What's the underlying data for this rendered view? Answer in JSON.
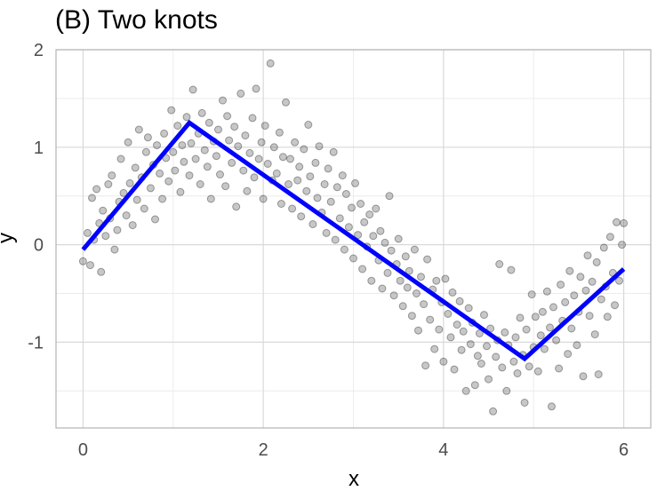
{
  "chart_data": {
    "type": "scatter",
    "title": "(B) Two knots",
    "xlabel": "x",
    "ylabel": "y",
    "xlim": [
      -0.3,
      6.3
    ],
    "ylim": [
      -1.88,
      2.0
    ],
    "x_ticks": [
      0,
      2,
      4,
      6
    ],
    "y_ticks": [
      -1,
      0,
      1,
      2
    ],
    "x_tick_labels": [
      "0",
      "2",
      "4",
      "6"
    ],
    "y_tick_labels": [
      "-1",
      "0",
      "1",
      "2"
    ],
    "grid": true,
    "colors": {
      "points": "#000000",
      "points_opacity": 0.22,
      "fit_line": "#0000ff",
      "grid_major": "#d9d9d9",
      "grid_minor": "#ececec",
      "panel_border": "#b3b3b3"
    },
    "series": [
      {
        "type": "scatter",
        "points": [
          [
            0.0,
            -0.17
          ],
          [
            0.05,
            0.12
          ],
          [
            0.08,
            -0.21
          ],
          [
            0.1,
            0.48
          ],
          [
            0.12,
            0.05
          ],
          [
            0.15,
            0.57
          ],
          [
            0.18,
            0.22
          ],
          [
            0.2,
            -0.28
          ],
          [
            0.22,
            0.35
          ],
          [
            0.25,
            0.09
          ],
          [
            0.28,
            0.62
          ],
          [
            0.3,
            0.27
          ],
          [
            0.32,
            0.71
          ],
          [
            0.35,
            -0.05
          ],
          [
            0.38,
            0.15
          ],
          [
            0.4,
            0.44
          ],
          [
            0.42,
            0.88
          ],
          [
            0.45,
            0.53
          ],
          [
            0.48,
            0.3
          ],
          [
            0.5,
            1.05
          ],
          [
            0.52,
            0.63
          ],
          [
            0.55,
            0.2
          ],
          [
            0.58,
            0.79
          ],
          [
            0.6,
            0.46
          ],
          [
            0.62,
            1.18
          ],
          [
            0.65,
            0.69
          ],
          [
            0.68,
            0.37
          ],
          [
            0.7,
            0.95
          ],
          [
            0.72,
            1.1
          ],
          [
            0.75,
            0.58
          ],
          [
            0.78,
            0.82
          ],
          [
            0.8,
            0.26
          ],
          [
            0.82,
            1.02
          ],
          [
            0.85,
            0.73
          ],
          [
            0.88,
            0.47
          ],
          [
            0.9,
            1.14
          ],
          [
            0.92,
            0.89
          ],
          [
            0.95,
            0.65
          ],
          [
            0.98,
            1.38
          ],
          [
            1.0,
            0.95
          ],
          [
            1.02,
            0.76
          ],
          [
            1.05,
            1.22
          ],
          [
            1.08,
            0.54
          ],
          [
            1.1,
            1.02
          ],
          [
            1.12,
            0.85
          ],
          [
            1.15,
            1.31
          ],
          [
            1.18,
            0.71
          ],
          [
            1.2,
            1.04
          ],
          [
            1.22,
            1.59
          ],
          [
            1.25,
            0.88
          ],
          [
            1.28,
            1.14
          ],
          [
            1.3,
            0.62
          ],
          [
            1.32,
            1.35
          ],
          [
            1.35,
            0.97
          ],
          [
            1.38,
            0.8
          ],
          [
            1.4,
            1.25
          ],
          [
            1.42,
            0.47
          ],
          [
            1.45,
            1.06
          ],
          [
            1.48,
            0.91
          ],
          [
            1.5,
            1.18
          ],
          [
            1.52,
            0.72
          ],
          [
            1.55,
            1.48
          ],
          [
            1.58,
            0.6
          ],
          [
            1.6,
            1.32
          ],
          [
            1.62,
            1.07
          ],
          [
            1.65,
            0.84
          ],
          [
            1.68,
            1.21
          ],
          [
            1.7,
            0.39
          ],
          [
            1.72,
            1.01
          ],
          [
            1.75,
            1.55
          ],
          [
            1.78,
            0.76
          ],
          [
            1.8,
            1.12
          ],
          [
            1.82,
            0.55
          ],
          [
            1.85,
            0.94
          ],
          [
            1.88,
            1.3
          ],
          [
            1.9,
            0.69
          ],
          [
            1.92,
            1.6
          ],
          [
            1.95,
            0.88
          ],
          [
            1.98,
            1.05
          ],
          [
            2.0,
            0.47
          ],
          [
            2.02,
            1.22
          ],
          [
            2.05,
            0.83
          ],
          [
            2.08,
            1.86
          ],
          [
            2.1,
            0.66
          ],
          [
            2.12,
            1.0
          ],
          [
            2.15,
            0.73
          ],
          [
            2.18,
            1.15
          ],
          [
            2.2,
            0.42
          ],
          [
            2.22,
            0.9
          ],
          [
            2.25,
            1.46
          ],
          [
            2.28,
            0.62
          ],
          [
            2.3,
            0.88
          ],
          [
            2.32,
            0.37
          ],
          [
            2.35,
            1.05
          ],
          [
            2.38,
            0.66
          ],
          [
            2.4,
            0.8
          ],
          [
            2.42,
            0.29
          ],
          [
            2.45,
            0.98
          ],
          [
            2.48,
            0.55
          ],
          [
            2.5,
            1.23
          ],
          [
            2.52,
            0.7
          ],
          [
            2.55,
            0.21
          ],
          [
            2.58,
            0.84
          ],
          [
            2.6,
            0.48
          ],
          [
            2.62,
            1.01
          ],
          [
            2.65,
            0.33
          ],
          [
            2.68,
            0.62
          ],
          [
            2.7,
            0.12
          ],
          [
            2.72,
            0.78
          ],
          [
            2.75,
            0.44
          ],
          [
            2.78,
            0.95
          ],
          [
            2.8,
            0.05
          ],
          [
            2.82,
            0.59
          ],
          [
            2.85,
            0.27
          ],
          [
            2.88,
            0.71
          ],
          [
            2.9,
            -0.05
          ],
          [
            2.92,
            0.52
          ],
          [
            2.95,
            0.18
          ],
          [
            2.98,
            0.38
          ],
          [
            3.0,
            -0.14
          ],
          [
            3.02,
            0.63
          ],
          [
            3.05,
            0.1
          ],
          [
            3.08,
            0.42
          ],
          [
            3.1,
            -0.25
          ],
          [
            3.12,
            0.23
          ],
          [
            3.15,
            -0.02
          ],
          [
            3.18,
            0.31
          ],
          [
            3.2,
            -0.37
          ],
          [
            3.22,
            0.09
          ],
          [
            3.25,
            0.37
          ],
          [
            3.28,
            -0.16
          ],
          [
            3.3,
            0.14
          ],
          [
            3.32,
            -0.45
          ],
          [
            3.35,
            0.02
          ],
          [
            3.38,
            -0.29
          ],
          [
            3.4,
            0.5
          ],
          [
            3.42,
            -0.06
          ],
          [
            3.45,
            -0.52
          ],
          [
            3.48,
            -0.2
          ],
          [
            3.5,
            0.06
          ],
          [
            3.52,
            -0.37
          ],
          [
            3.55,
            -0.63
          ],
          [
            3.58,
            -0.12
          ],
          [
            3.6,
            -0.44
          ],
          [
            3.62,
            -0.27
          ],
          [
            3.65,
            -0.73
          ],
          [
            3.68,
            -0.05
          ],
          [
            3.7,
            -0.5
          ],
          [
            3.72,
            -0.88
          ],
          [
            3.75,
            -0.33
          ],
          [
            3.78,
            -0.61
          ],
          [
            3.8,
            -1.24
          ],
          [
            3.82,
            -0.15
          ],
          [
            3.85,
            -0.77
          ],
          [
            3.88,
            -0.46
          ],
          [
            3.9,
            -1.07
          ],
          [
            3.92,
            -0.37
          ],
          [
            3.95,
            -0.87
          ],
          [
            3.98,
            -0.59
          ],
          [
            4.0,
            -1.2
          ],
          [
            4.02,
            -0.35
          ],
          [
            4.05,
            -0.71
          ],
          [
            4.08,
            -0.95
          ],
          [
            4.1,
            -0.49
          ],
          [
            4.12,
            -1.28
          ],
          [
            4.15,
            -0.82
          ],
          [
            4.18,
            -0.58
          ],
          [
            4.2,
            -1.08
          ],
          [
            4.22,
            -0.89
          ],
          [
            4.25,
            -1.5
          ],
          [
            4.28,
            -0.65
          ],
          [
            4.3,
            -1.02
          ],
          [
            4.32,
            -0.8
          ],
          [
            4.35,
            -1.44
          ],
          [
            4.38,
            -1.14
          ],
          [
            4.4,
            -0.91
          ],
          [
            4.42,
            -1.22
          ],
          [
            4.45,
            -0.72
          ],
          [
            4.48,
            -1.04
          ],
          [
            4.5,
            -1.38
          ],
          [
            4.52,
            -0.86
          ],
          [
            4.55,
            -1.71
          ],
          [
            4.58,
            -1.15
          ],
          [
            4.6,
            -0.98
          ],
          [
            4.62,
            -0.2
          ],
          [
            4.65,
            -1.26
          ],
          [
            4.68,
            -0.9
          ],
          [
            4.7,
            -1.5
          ],
          [
            4.72,
            -1.03
          ],
          [
            4.75,
            -0.26
          ],
          [
            4.78,
            -1.2
          ],
          [
            4.8,
            -0.95
          ],
          [
            4.82,
            -1.32
          ],
          [
            4.85,
            -0.75
          ],
          [
            4.88,
            -1.13
          ],
          [
            4.9,
            -1.62
          ],
          [
            4.92,
            -0.87
          ],
          [
            4.95,
            -1.25
          ],
          [
            4.98,
            -0.51
          ],
          [
            5.0,
            -1.05
          ],
          [
            5.02,
            -0.74
          ],
          [
            5.05,
            -1.3
          ],
          [
            5.08,
            -0.93
          ],
          [
            5.1,
            -0.69
          ],
          [
            5.12,
            -1.07
          ],
          [
            5.15,
            -0.48
          ],
          [
            5.18,
            -0.85
          ],
          [
            5.2,
            -1.66
          ],
          [
            5.22,
            -0.64
          ],
          [
            5.25,
            -0.98
          ],
          [
            5.28,
            -1.27
          ],
          [
            5.3,
            -0.41
          ],
          [
            5.32,
            -0.78
          ],
          [
            5.35,
            -0.59
          ],
          [
            5.38,
            -1.12
          ],
          [
            5.4,
            -0.27
          ],
          [
            5.42,
            -0.86
          ],
          [
            5.45,
            -0.52
          ],
          [
            5.48,
            -1.03
          ],
          [
            5.5,
            -0.69
          ],
          [
            5.52,
            -0.33
          ],
          [
            5.55,
            -1.35
          ],
          [
            5.58,
            -0.47
          ],
          [
            5.6,
            -0.11
          ],
          [
            5.62,
            -0.73
          ],
          [
            5.65,
            -0.38
          ],
          [
            5.68,
            -0.92
          ],
          [
            5.7,
            -0.18
          ],
          [
            5.72,
            -1.33
          ],
          [
            5.75,
            -0.56
          ],
          [
            5.78,
            -0.03
          ],
          [
            5.8,
            -0.43
          ],
          [
            5.82,
            -0.74
          ],
          [
            5.85,
            0.08
          ],
          [
            5.88,
            -0.29
          ],
          [
            5.9,
            -0.62
          ],
          [
            5.92,
            0.23
          ],
          [
            5.95,
            -0.37
          ],
          [
            5.98,
            0.0
          ],
          [
            6.0,
            0.22
          ]
        ]
      },
      {
        "type": "line",
        "points": [
          [
            0.0,
            -0.05
          ],
          [
            1.18,
            1.25
          ],
          [
            4.9,
            -1.17
          ],
          [
            6.0,
            -0.25
          ]
        ]
      }
    ]
  }
}
